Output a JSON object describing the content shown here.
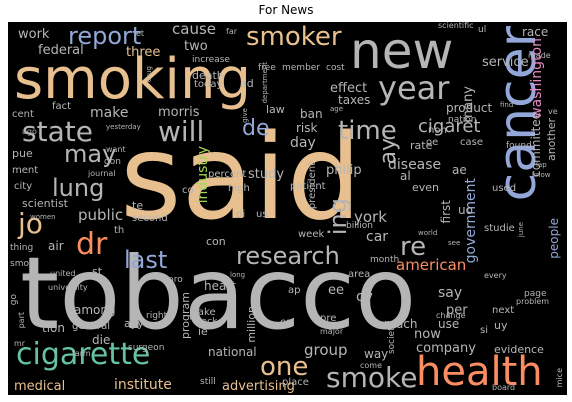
{
  "title": "For News",
  "palette": {
    "tan": "#E8C08F",
    "grey": "#B5B5B5",
    "blue": "#93A8D8",
    "teal": "#66C2A5",
    "salmon": "#FC8D62",
    "pink": "#E78AC3",
    "green": "#A6D854",
    "yellow": "#FFD92F",
    "lightblue": "#8DA0CB",
    "mint": "#8DD3C7"
  },
  "words": [
    {
      "text": "said",
      "color": "#E8C08F"
    },
    {
      "text": "tobacco",
      "color": "#B5B5B5"
    },
    {
      "text": "smoking",
      "color": "#E8C08F"
    },
    {
      "text": "new",
      "color": "#B5B5B5"
    },
    {
      "text": "cancer",
      "color": "#93A8D8"
    },
    {
      "text": "health",
      "color": "#FC8D62"
    },
    {
      "text": "cigarette",
      "color": "#66C2A5"
    },
    {
      "text": "smoke",
      "color": "#B5B5B5"
    },
    {
      "text": "state",
      "color": "#B5B5B5"
    },
    {
      "text": "will",
      "color": "#B5B5B5"
    },
    {
      "text": "year",
      "color": "#B5B5B5"
    },
    {
      "text": "smoker",
      "color": "#E8C08F"
    },
    {
      "text": "research",
      "color": "#B5B5B5"
    },
    {
      "text": "report",
      "color": "#93A8D8"
    },
    {
      "text": "jo",
      "color": "#E8C08F"
    },
    {
      "text": "dr",
      "color": "#FC8D62"
    },
    {
      "text": "last",
      "color": "#93A8D8"
    },
    {
      "text": "lung",
      "color": "#B5B5B5"
    },
    {
      "text": "may",
      "color": "#B5B5B5"
    },
    {
      "text": "time",
      "color": "#B5B5B5"
    },
    {
      "text": "one",
      "color": "#E8C08F"
    },
    {
      "text": "re",
      "color": "#B5B5B5"
    },
    {
      "text": "ing",
      "color": "#B5B5B5"
    },
    {
      "text": "de",
      "color": "#93A8D8"
    },
    {
      "text": "ay",
      "color": "#B5B5B5"
    },
    {
      "text": "cigaret",
      "color": "#B5B5B5"
    },
    {
      "text": "american",
      "color": "#FC8D62"
    },
    {
      "text": "institute",
      "color": "#E8C08F"
    },
    {
      "text": "advertising",
      "color": "#E8C08F"
    },
    {
      "text": "group",
      "color": "#B5B5B5"
    },
    {
      "text": "company",
      "color": "#B5B5B5"
    },
    {
      "text": "medical",
      "color": "#E8C08F"
    },
    {
      "text": "public",
      "color": "#B5B5B5"
    },
    {
      "text": "york",
      "color": "#B5B5B5"
    },
    {
      "text": "car",
      "color": "#B5B5B5"
    },
    {
      "text": "government",
      "color": "#93A8D8"
    },
    {
      "text": "washington",
      "color": "#E78AC3"
    },
    {
      "text": "disease",
      "color": "#B5B5B5"
    },
    {
      "text": "cause",
      "color": "#B5B5B5"
    },
    {
      "text": "work",
      "color": "#B5B5B5"
    },
    {
      "text": "federal",
      "color": "#B5B5B5"
    },
    {
      "text": "three",
      "color": "#E8C08F"
    },
    {
      "text": "two",
      "color": "#B5B5B5"
    },
    {
      "text": "make",
      "color": "#B5B5B5"
    },
    {
      "text": "morris",
      "color": "#B5B5B5"
    },
    {
      "text": "industry",
      "color": "#A6D854"
    },
    {
      "text": "study",
      "color": "#B5B5B5"
    },
    {
      "text": "philip",
      "color": "#B5B5B5"
    },
    {
      "text": "day",
      "color": "#B5B5B5"
    },
    {
      "text": "risk",
      "color": "#B5B5B5"
    },
    {
      "text": "effect",
      "color": "#B5B5B5"
    },
    {
      "text": "taxes",
      "color": "#B5B5B5"
    },
    {
      "text": "service",
      "color": "#B5B5B5"
    },
    {
      "text": "product",
      "color": "#B5B5B5"
    },
    {
      "text": "many",
      "color": "#B5B5B5"
    },
    {
      "text": "committee",
      "color": "#B5B5B5"
    },
    {
      "text": "another",
      "color": "#B5B5B5"
    },
    {
      "text": "race",
      "color": "#B5B5B5"
    },
    {
      "text": "people",
      "color": "#93A8D8"
    },
    {
      "text": "say",
      "color": "#B5B5B5"
    },
    {
      "text": "per",
      "color": "#B5B5B5"
    },
    {
      "text": "oy",
      "color": "#B5B5B5"
    },
    {
      "text": "ee",
      "color": "#B5B5B5"
    },
    {
      "text": "now",
      "color": "#B5B5B5"
    },
    {
      "text": "much",
      "color": "#B5B5B5"
    },
    {
      "text": "evidence",
      "color": "#B5B5B5"
    },
    {
      "text": "way",
      "color": "#B5B5B5"
    },
    {
      "text": "national",
      "color": "#B5B5B5"
    },
    {
      "text": "million",
      "color": "#B5B5B5"
    },
    {
      "text": "program",
      "color": "#B5B5B5"
    },
    {
      "text": "among",
      "color": "#B5B5B5"
    },
    {
      "text": "tion",
      "color": "#B5B5B5"
    },
    {
      "text": "general",
      "color": "#B5B5B5"
    },
    {
      "text": "die",
      "color": "#B5B5B5"
    },
    {
      "text": "heart",
      "color": "#B5B5B5"
    },
    {
      "text": "second",
      "color": "#B5B5B5"
    },
    {
      "text": "scientist",
      "color": "#B5B5B5"
    },
    {
      "text": "city",
      "color": "#B5B5B5"
    },
    {
      "text": "ment",
      "color": "#B5B5B5"
    },
    {
      "text": "pue",
      "color": "#B5B5B5"
    },
    {
      "text": "cent",
      "color": "#B5B5B5"
    },
    {
      "text": "fact",
      "color": "#B5B5B5"
    },
    {
      "text": "air",
      "color": "#B5B5B5"
    },
    {
      "text": "con",
      "color": "#B5B5B5"
    },
    {
      "text": "te",
      "color": "#B5B5B5"
    },
    {
      "text": "st",
      "color": "#B5B5B5"
    },
    {
      "text": "ayy",
      "color": "#B5B5B5"
    },
    {
      "text": "ie",
      "color": "#B5B5B5"
    },
    {
      "text": "take",
      "color": "#B5B5B5"
    },
    {
      "text": "pack",
      "color": "#B5B5B5"
    },
    {
      "text": "right",
      "color": "#B5B5B5"
    },
    {
      "text": "ap",
      "color": "#B5B5B5"
    },
    {
      "text": "es",
      "color": "#B5B5B5"
    },
    {
      "text": "pre",
      "color": "#B5B5B5"
    },
    {
      "text": "use",
      "color": "#B5B5B5"
    },
    {
      "text": "next",
      "color": "#B5B5B5"
    },
    {
      "text": "uy",
      "color": "#B5B5B5"
    },
    {
      "text": "si",
      "color": "#B5B5B5"
    },
    {
      "text": "first",
      "color": "#B5B5B5"
    },
    {
      "text": "uo",
      "color": "#B5B5B5"
    },
    {
      "text": "ae",
      "color": "#B5B5B5"
    },
    {
      "text": "al",
      "color": "#B5B5B5"
    },
    {
      "text": "even",
      "color": "#B5B5B5"
    },
    {
      "text": "rate",
      "color": "#B5B5B5"
    },
    {
      "text": "non",
      "color": "#B5B5B5"
    },
    {
      "text": "case",
      "color": "#B5B5B5"
    },
    {
      "text": "nation",
      "color": "#B5B5B5"
    },
    {
      "text": "patient",
      "color": "#B5B5B5"
    },
    {
      "text": "president",
      "color": "#B5B5B5"
    },
    {
      "text": "billion",
      "color": "#B5B5B5"
    },
    {
      "text": "percent",
      "color": "#B5B5B5"
    },
    {
      "text": "high",
      "color": "#B5B5B5"
    },
    {
      "text": "week",
      "color": "#B5B5B5"
    },
    {
      "text": "death",
      "color": "#B5B5B5"
    },
    {
      "text": "today",
      "color": "#B5B5B5"
    },
    {
      "text": "law",
      "color": "#B5B5B5"
    },
    {
      "text": "ban",
      "color": "#B5B5B5"
    },
    {
      "text": "ad",
      "color": "#B5B5B5"
    },
    {
      "text": "member",
      "color": "#B5B5B5"
    },
    {
      "text": "increase",
      "color": "#B5B5B5"
    },
    {
      "text": "free",
      "color": "#B5B5B5"
    },
    {
      "text": "cost",
      "color": "#B5B5B5"
    },
    {
      "text": "scientific",
      "color": "#B5B5B5"
    },
    {
      "text": "made",
      "color": "#B5B5B5"
    },
    {
      "text": "found",
      "color": "#B5B5B5"
    },
    {
      "text": "used",
      "color": "#B5B5B5"
    },
    {
      "text": "studie",
      "color": "#B5B5B5"
    },
    {
      "text": "area",
      "color": "#B5B5B5"
    },
    {
      "text": "school",
      "color": "#B5B5B5"
    },
    {
      "text": "society",
      "color": "#B5B5B5"
    },
    {
      "text": "month",
      "color": "#B5B5B5"
    },
    {
      "text": "page",
      "color": "#B5B5B5"
    },
    {
      "text": "problem",
      "color": "#B5B5B5"
    },
    {
      "text": "change",
      "color": "#B5B5B5"
    },
    {
      "text": "every",
      "color": "#B5B5B5"
    },
    {
      "text": "place",
      "color": "#B5B5B5"
    },
    {
      "text": "surgeon",
      "color": "#B5B5B5"
    },
    {
      "text": "farm",
      "color": "#B5B5B5"
    },
    {
      "text": "still",
      "color": "#B5B5B5"
    },
    {
      "text": "come",
      "color": "#B5B5B5"
    },
    {
      "text": "board",
      "color": "#B5B5B5"
    },
    {
      "text": "mice",
      "color": "#B5B5B5"
    },
    {
      "text": "major",
      "color": "#B5B5B5"
    },
    {
      "text": "smok",
      "color": "#B5B5B5"
    },
    {
      "text": "united",
      "color": "#B5B5B5"
    },
    {
      "text": "university",
      "color": "#B5B5B5"
    },
    {
      "text": "thing",
      "color": "#B5B5B5"
    },
    {
      "text": "women",
      "color": "#B5B5B5"
    },
    {
      "text": "journal",
      "color": "#B5B5B5"
    },
    {
      "text": "don",
      "color": "#B5B5B5"
    },
    {
      "text": "ago",
      "color": "#B5B5B5"
    },
    {
      "text": "yesterday",
      "color": "#B5B5B5"
    },
    {
      "text": "want",
      "color": "#B5B5B5"
    },
    {
      "text": "drug",
      "color": "#B5B5B5"
    },
    {
      "text": "long",
      "color": "#B5B5B5"
    },
    {
      "text": "pro",
      "color": "#B5B5B5"
    },
    {
      "text": "go",
      "color": "#B5B5B5"
    },
    {
      "text": "mr",
      "color": "#B5B5B5"
    },
    {
      "text": "part",
      "color": "#B5B5B5"
    },
    {
      "text": "co",
      "color": "#B5B5B5"
    },
    {
      "text": "di",
      "color": "#B5B5B5"
    },
    {
      "text": "us",
      "color": "#B5B5B5"
    },
    {
      "text": "th",
      "color": "#B5B5B5"
    },
    {
      "text": "department",
      "color": "#B5B5B5"
    },
    {
      "text": "give",
      "color": "#B5B5B5"
    },
    {
      "text": "age",
      "color": "#B5B5B5"
    },
    {
      "text": "world",
      "color": "#B5B5B5"
    },
    {
      "text": "see",
      "color": "#B5B5B5"
    },
    {
      "text": "lap",
      "color": "#B5B5B5"
    },
    {
      "text": "know",
      "color": "#B5B5B5"
    },
    {
      "text": "june",
      "color": "#B5B5B5"
    },
    {
      "text": "find",
      "color": "#B5B5B5"
    },
    {
      "text": "oe",
      "color": "#B5B5B5"
    },
    {
      "text": "ve",
      "color": "#B5B5B5"
    },
    {
      "text": "ul",
      "color": "#B5B5B5"
    },
    {
      "text": "et",
      "color": "#B5B5B5"
    },
    {
      "text": "far",
      "color": "#B5B5B5"
    },
    {
      "text": "ie",
      "color": "#B5B5B5"
    }
  ]
}
